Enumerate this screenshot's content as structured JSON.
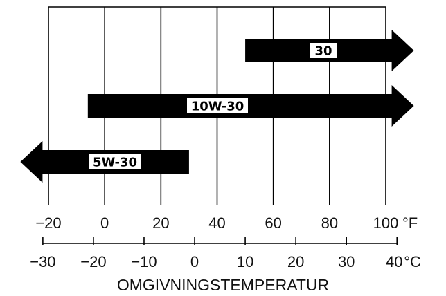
{
  "title": "OMGIVNINGSTEMPERATUR",
  "fahrenheit_axis": {
    "unit": "°F",
    "ticks": [
      "−20",
      "0",
      "20",
      "40",
      "60",
      "80",
      "100"
    ]
  },
  "celsius_axis": {
    "unit": "°C",
    "ticks": [
      "−30",
      "−20",
      "−10",
      "0",
      "10",
      "20",
      "30",
      "40"
    ]
  },
  "chart_data": {
    "type": "bar",
    "orientation": "horizontal-range",
    "x_unit_primary": "°F",
    "x_unit_secondary": "°C",
    "xlim_F": [
      -20,
      100
    ],
    "xlim_C": [
      -30,
      40
    ],
    "grid": true,
    "bars": [
      {
        "label": "30",
        "from_F": 50,
        "to_F": 110,
        "arrow": "right"
      },
      {
        "label": "10W-30",
        "from_F": -6,
        "to_F": 110,
        "arrow": "right"
      },
      {
        "label": "5W-30",
        "from_F": -30,
        "to_F": 30,
        "arrow": "left"
      }
    ]
  },
  "colors": {
    "ink": "#000000",
    "background": "#ffffff"
  }
}
